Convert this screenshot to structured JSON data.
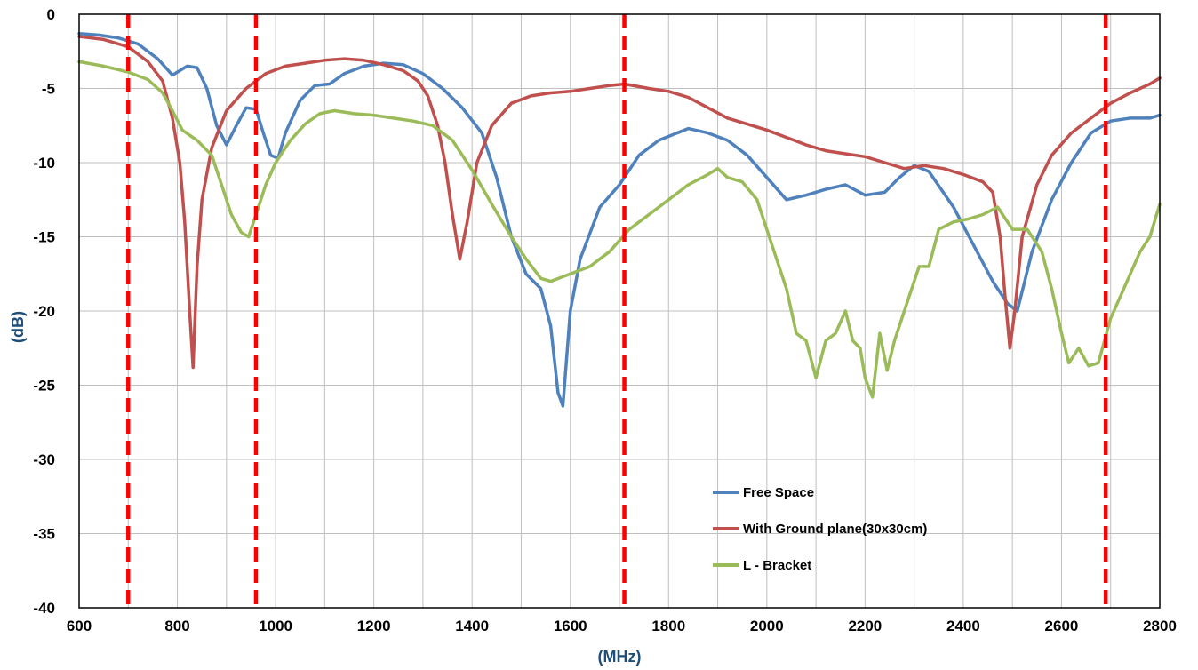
{
  "chart_data": {
    "type": "line",
    "title": "",
    "xlabel": "(MHz)",
    "ylabel": "(dB)",
    "xlim": [
      600,
      2800
    ],
    "ylim": [
      -40,
      0
    ],
    "xticks": [
      600,
      800,
      1000,
      1200,
      1400,
      1600,
      1800,
      2000,
      2200,
      2400,
      2600,
      2800
    ],
    "yticks": [
      0,
      -5,
      -10,
      -15,
      -20,
      -25,
      -30,
      -35,
      -40
    ],
    "grid": true,
    "legend_position": "bottom-center",
    "colors": {
      "axis_title": "#1F4E79",
      "grid": "#BFBFBF",
      "marker_line": "#FF0000"
    },
    "vertical_markers": [
      700,
      960,
      1710,
      2690
    ],
    "series": [
      {
        "name": "Free Space",
        "color": "#4F81BD",
        "points": [
          [
            600,
            -1.3
          ],
          [
            640,
            -1.4
          ],
          [
            680,
            -1.6
          ],
          [
            720,
            -2.0
          ],
          [
            760,
            -3.0
          ],
          [
            790,
            -4.1
          ],
          [
            820,
            -3.5
          ],
          [
            840,
            -3.6
          ],
          [
            860,
            -5.0
          ],
          [
            880,
            -7.5
          ],
          [
            900,
            -8.8
          ],
          [
            920,
            -7.5
          ],
          [
            940,
            -6.3
          ],
          [
            960,
            -6.4
          ],
          [
            975,
            -8.0
          ],
          [
            990,
            -9.5
          ],
          [
            1005,
            -9.7
          ],
          [
            1020,
            -8.0
          ],
          [
            1050,
            -5.8
          ],
          [
            1080,
            -4.8
          ],
          [
            1110,
            -4.7
          ],
          [
            1140,
            -4.0
          ],
          [
            1180,
            -3.5
          ],
          [
            1220,
            -3.3
          ],
          [
            1260,
            -3.4
          ],
          [
            1300,
            -4.0
          ],
          [
            1340,
            -5.0
          ],
          [
            1380,
            -6.3
          ],
          [
            1420,
            -8.0
          ],
          [
            1450,
            -11.0
          ],
          [
            1480,
            -15.0
          ],
          [
            1510,
            -17.5
          ],
          [
            1540,
            -18.5
          ],
          [
            1560,
            -21.0
          ],
          [
            1575,
            -25.5
          ],
          [
            1585,
            -26.4
          ],
          [
            1600,
            -20.0
          ],
          [
            1620,
            -16.5
          ],
          [
            1660,
            -13.0
          ],
          [
            1700,
            -11.5
          ],
          [
            1740,
            -9.5
          ],
          [
            1780,
            -8.5
          ],
          [
            1840,
            -7.7
          ],
          [
            1880,
            -8.0
          ],
          [
            1920,
            -8.5
          ],
          [
            1960,
            -9.5
          ],
          [
            2000,
            -11.0
          ],
          [
            2040,
            -12.5
          ],
          [
            2080,
            -12.2
          ],
          [
            2120,
            -11.8
          ],
          [
            2160,
            -11.5
          ],
          [
            2200,
            -12.2
          ],
          [
            2240,
            -12.0
          ],
          [
            2270,
            -11.0
          ],
          [
            2300,
            -10.2
          ],
          [
            2330,
            -10.6
          ],
          [
            2380,
            -13.0
          ],
          [
            2420,
            -15.5
          ],
          [
            2460,
            -18.0
          ],
          [
            2490,
            -19.5
          ],
          [
            2510,
            -20.0
          ],
          [
            2540,
            -16.0
          ],
          [
            2580,
            -12.5
          ],
          [
            2620,
            -10.0
          ],
          [
            2660,
            -8.0
          ],
          [
            2700,
            -7.2
          ],
          [
            2740,
            -7.0
          ],
          [
            2780,
            -7.0
          ],
          [
            2800,
            -6.8
          ]
        ]
      },
      {
        "name": "With Ground plane(30x30cm)",
        "color": "#C0504D",
        "points": [
          [
            600,
            -1.5
          ],
          [
            650,
            -1.7
          ],
          [
            700,
            -2.2
          ],
          [
            740,
            -3.2
          ],
          [
            770,
            -4.5
          ],
          [
            790,
            -7.0
          ],
          [
            805,
            -10.0
          ],
          [
            815,
            -14.0
          ],
          [
            825,
            -20.0
          ],
          [
            832,
            -23.8
          ],
          [
            840,
            -17.0
          ],
          [
            850,
            -12.5
          ],
          [
            870,
            -9.0
          ],
          [
            900,
            -6.5
          ],
          [
            940,
            -5.0
          ],
          [
            980,
            -4.0
          ],
          [
            1020,
            -3.5
          ],
          [
            1060,
            -3.3
          ],
          [
            1100,
            -3.1
          ],
          [
            1140,
            -3.0
          ],
          [
            1180,
            -3.1
          ],
          [
            1220,
            -3.4
          ],
          [
            1260,
            -3.8
          ],
          [
            1290,
            -4.5
          ],
          [
            1310,
            -5.5
          ],
          [
            1330,
            -7.5
          ],
          [
            1345,
            -10.0
          ],
          [
            1360,
            -13.5
          ],
          [
            1375,
            -16.5
          ],
          [
            1390,
            -14.0
          ],
          [
            1410,
            -10.0
          ],
          [
            1440,
            -7.5
          ],
          [
            1480,
            -6.0
          ],
          [
            1520,
            -5.5
          ],
          [
            1560,
            -5.3
          ],
          [
            1600,
            -5.2
          ],
          [
            1640,
            -5.0
          ],
          [
            1680,
            -4.8
          ],
          [
            1710,
            -4.7
          ],
          [
            1760,
            -5.0
          ],
          [
            1800,
            -5.2
          ],
          [
            1840,
            -5.6
          ],
          [
            1880,
            -6.3
          ],
          [
            1920,
            -7.0
          ],
          [
            1960,
            -7.4
          ],
          [
            2000,
            -7.8
          ],
          [
            2040,
            -8.3
          ],
          [
            2080,
            -8.8
          ],
          [
            2120,
            -9.2
          ],
          [
            2160,
            -9.4
          ],
          [
            2200,
            -9.6
          ],
          [
            2240,
            -10.0
          ],
          [
            2280,
            -10.4
          ],
          [
            2320,
            -10.2
          ],
          [
            2360,
            -10.4
          ],
          [
            2400,
            -10.8
          ],
          [
            2440,
            -11.3
          ],
          [
            2460,
            -12.0
          ],
          [
            2475,
            -15.0
          ],
          [
            2485,
            -19.0
          ],
          [
            2495,
            -22.5
          ],
          [
            2505,
            -20.0
          ],
          [
            2520,
            -15.0
          ],
          [
            2550,
            -11.5
          ],
          [
            2580,
            -9.5
          ],
          [
            2620,
            -8.0
          ],
          [
            2660,
            -7.0
          ],
          [
            2700,
            -6.0
          ],
          [
            2740,
            -5.3
          ],
          [
            2780,
            -4.7
          ],
          [
            2800,
            -4.3
          ]
        ]
      },
      {
        "name": "L - Bracket",
        "color": "#9BBB59",
        "points": [
          [
            600,
            -3.2
          ],
          [
            650,
            -3.5
          ],
          [
            700,
            -3.9
          ],
          [
            740,
            -4.4
          ],
          [
            770,
            -5.3
          ],
          [
            790,
            -6.5
          ],
          [
            810,
            -7.8
          ],
          [
            840,
            -8.5
          ],
          [
            870,
            -9.5
          ],
          [
            890,
            -11.5
          ],
          [
            910,
            -13.5
          ],
          [
            930,
            -14.7
          ],
          [
            945,
            -15.0
          ],
          [
            960,
            -13.5
          ],
          [
            980,
            -11.5
          ],
          [
            1000,
            -10.0
          ],
          [
            1030,
            -8.5
          ],
          [
            1060,
            -7.4
          ],
          [
            1090,
            -6.7
          ],
          [
            1120,
            -6.5
          ],
          [
            1160,
            -6.7
          ],
          [
            1200,
            -6.8
          ],
          [
            1240,
            -7.0
          ],
          [
            1280,
            -7.2
          ],
          [
            1320,
            -7.5
          ],
          [
            1360,
            -8.5
          ],
          [
            1400,
            -10.5
          ],
          [
            1440,
            -12.8
          ],
          [
            1480,
            -15.0
          ],
          [
            1510,
            -16.5
          ],
          [
            1540,
            -17.8
          ],
          [
            1560,
            -18.0
          ],
          [
            1600,
            -17.5
          ],
          [
            1640,
            -17.0
          ],
          [
            1680,
            -16.0
          ],
          [
            1720,
            -14.5
          ],
          [
            1760,
            -13.5
          ],
          [
            1800,
            -12.5
          ],
          [
            1840,
            -11.5
          ],
          [
            1880,
            -10.8
          ],
          [
            1900,
            -10.4
          ],
          [
            1920,
            -11.0
          ],
          [
            1950,
            -11.3
          ],
          [
            1980,
            -12.5
          ],
          [
            2010,
            -15.5
          ],
          [
            2040,
            -18.5
          ],
          [
            2060,
            -21.5
          ],
          [
            2080,
            -22.0
          ],
          [
            2100,
            -24.5
          ],
          [
            2120,
            -22.0
          ],
          [
            2140,
            -21.5
          ],
          [
            2160,
            -20.0
          ],
          [
            2175,
            -22.0
          ],
          [
            2190,
            -22.5
          ],
          [
            2200,
            -24.5
          ],
          [
            2215,
            -25.8
          ],
          [
            2230,
            -21.5
          ],
          [
            2245,
            -24.0
          ],
          [
            2260,
            -22.0
          ],
          [
            2275,
            -20.5
          ],
          [
            2290,
            -19.0
          ],
          [
            2310,
            -17.0
          ],
          [
            2330,
            -17.0
          ],
          [
            2350,
            -14.5
          ],
          [
            2380,
            -14.0
          ],
          [
            2410,
            -13.8
          ],
          [
            2440,
            -13.5
          ],
          [
            2470,
            -13.0
          ],
          [
            2500,
            -14.5
          ],
          [
            2530,
            -14.5
          ],
          [
            2560,
            -16.0
          ],
          [
            2580,
            -18.5
          ],
          [
            2600,
            -21.5
          ],
          [
            2615,
            -23.5
          ],
          [
            2635,
            -22.5
          ],
          [
            2655,
            -23.7
          ],
          [
            2675,
            -23.5
          ],
          [
            2700,
            -20.5
          ],
          [
            2720,
            -19.0
          ],
          [
            2740,
            -17.5
          ],
          [
            2760,
            -16.0
          ],
          [
            2780,
            -15.0
          ],
          [
            2800,
            -12.8
          ]
        ]
      }
    ]
  }
}
